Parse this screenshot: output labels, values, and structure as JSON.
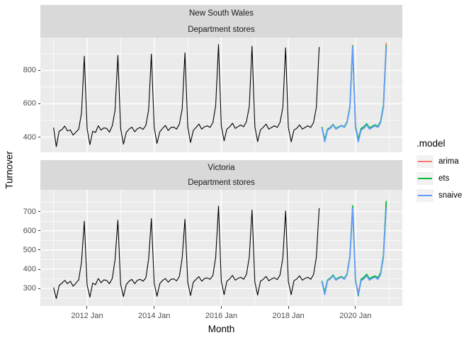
{
  "style": {
    "panel_bg": "#EBEBEB",
    "strip_bg": "#D9D9D9",
    "grid": "#FFFFFF",
    "tick_mark": "#333333",
    "tick_label": "#4D4D4D",
    "actual_color": "#000000",
    "arima_color": "#F8766D",
    "ets_color": "#00BA38",
    "snaive_color": "#619CFF"
  },
  "legend": {
    "title": ".model",
    "items": [
      {
        "label": "arima",
        "color": "#F8766D"
      },
      {
        "label": "ets",
        "color": "#00BA38"
      },
      {
        "label": "snaive",
        "color": "#619CFF"
      }
    ]
  },
  "chart_data": {
    "type": "line",
    "xlabel": "Month",
    "ylabel": "Turnover",
    "x_start": "2011 Jan",
    "frequency": "monthly",
    "legend_position": "right",
    "grid": "on",
    "x_ticks": [
      {
        "label": "2012 Jan",
        "month": 12
      },
      {
        "label": "2014 Jan",
        "month": 36
      },
      {
        "label": "2016 Jan",
        "month": 60
      },
      {
        "label": "2018 Jan",
        "month": 84
      },
      {
        "label": "2020 Jan",
        "month": 108
      }
    ],
    "x_minor_months": [
      0,
      24,
      48,
      72,
      96,
      120
    ],
    "facets": [
      {
        "strip": [
          "New South Wales",
          "Department stores"
        ],
        "ylim": [
          309,
          997
        ],
        "y_ticks": [
          400,
          600,
          800
        ],
        "y_minor": [
          500,
          700,
          900
        ],
        "series": {
          "actual": {
            "name": "actual",
            "color": "#000000",
            "start_month": 0,
            "values": [
              457,
              343,
              436,
              445,
              466,
              437,
              443,
              412,
              430,
              447,
              545,
              885,
              450,
              355,
              435,
              428,
              468,
              442,
              455,
              452,
              430,
              468,
              558,
              890,
              452,
              358,
              428,
              448,
              460,
              432,
              450,
              458,
              446,
              470,
              562,
              898,
              458,
              362,
              432,
              452,
              470,
              440,
              458,
              460,
              448,
              478,
              568,
              905,
              462,
              368,
              440,
              458,
              478,
              448,
              462,
              468,
              458,
              488,
              588,
              955,
              468,
              378,
              448,
              462,
              483,
              452,
              463,
              473,
              462,
              492,
              582,
              945,
              463,
              373,
              443,
              458,
              478,
              448,
              458,
              468,
              458,
              488,
              578,
              935,
              458,
              372,
              442,
              453,
              473,
              448,
              458,
              468,
              458,
              488,
              578,
              940
            ]
          },
          "forecasts": [
            {
              "name": "arima",
              "color": "#F8766D",
              "start_month": 96,
              "values": [
                455,
                380,
                445,
                455,
                474,
                450,
                460,
                469,
                460,
                490,
                582,
                950,
                458,
                382,
                448,
                458,
                477,
                452,
                462,
                471,
                462,
                492,
                586,
                965
              ]
            },
            {
              "name": "ets",
              "color": "#00BA38",
              "start_month": 96,
              "values": [
                462,
                385,
                448,
                458,
                476,
                452,
                462,
                470,
                462,
                492,
                585,
                945,
                466,
                388,
                452,
                462,
                480,
                455,
                465,
                473,
                465,
                495,
                590,
                950
              ]
            },
            {
              "name": "snaive",
              "color": "#619CFF",
              "start_month": 96,
              "values": [
                458,
                372,
                442,
                453,
                473,
                448,
                458,
                468,
                458,
                488,
                578,
                940,
                458,
                372,
                442,
                453,
                473,
                448,
                458,
                468,
                458,
                488,
                578,
                940
              ]
            }
          ]
        }
      },
      {
        "strip": [
          "Victoria",
          "Department stores"
        ],
        "ylim": [
          209,
          813
        ],
        "y_ticks": [
          300,
          400,
          500,
          600,
          700
        ],
        "y_minor": [
          250,
          350,
          450,
          550,
          650,
          750
        ],
        "series": {
          "actual": {
            "name": "actual",
            "color": "#000000",
            "start_month": 0,
            "values": [
              305,
              248,
              315,
              328,
              342,
              325,
              338,
              312,
              328,
              345,
              438,
              650,
              318,
              255,
              328,
              320,
              352,
              330,
              345,
              342,
              325,
              352,
              448,
              655,
              322,
              258,
              320,
              338,
              348,
              325,
              343,
              348,
              338,
              355,
              452,
              663,
              328,
              260,
              325,
              342,
              352,
              333,
              348,
              350,
              340,
              362,
              458,
              660,
              332,
              263,
              333,
              348,
              362,
              338,
              352,
              355,
              348,
              368,
              462,
              728,
              338,
              268,
              338,
              350,
              368,
              343,
              353,
              358,
              348,
              373,
              462,
              708,
              333,
              266,
              338,
              348,
              363,
              340,
              350,
              356,
              346,
              370,
              458,
              703,
              336,
              268,
              340,
              350,
              366,
              343,
              353,
              358,
              348,
              373,
              462,
              718
            ]
          },
          "forecasts": [
            {
              "name": "arima",
              "color": "#F8766D",
              "start_month": 96,
              "values": [
                334,
                276,
                341,
                351,
                368,
                344,
                354,
                359,
                350,
                374,
                464,
                726,
                337,
                279,
                344,
                354,
                371,
                347,
                357,
                362,
                353,
                377,
                468,
                748
              ]
            },
            {
              "name": "ets",
              "color": "#00BA38",
              "start_month": 96,
              "values": [
                340,
                280,
                344,
                354,
                370,
                347,
                357,
                362,
                352,
                377,
                468,
                730,
                344,
                262,
                348,
                358,
                374,
                350,
                360,
                365,
                356,
                381,
                472,
                755
              ]
            },
            {
              "name": "snaive",
              "color": "#619CFF",
              "start_month": 96,
              "values": [
                336,
                268,
                340,
                350,
                366,
                343,
                353,
                358,
                348,
                373,
                462,
                718,
                336,
                268,
                340,
                350,
                366,
                343,
                353,
                358,
                348,
                373,
                462,
                718
              ]
            }
          ]
        }
      }
    ]
  }
}
